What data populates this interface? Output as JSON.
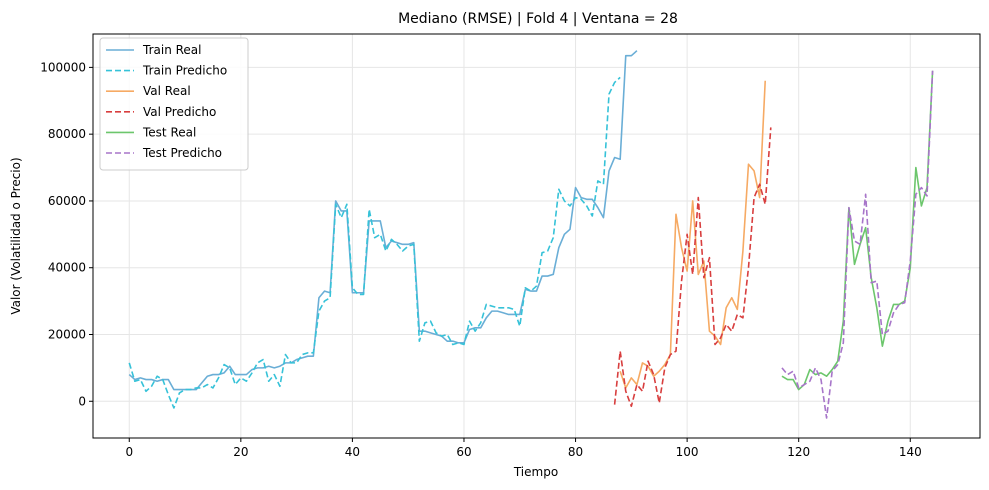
{
  "chart_data": {
    "type": "line",
    "title": "Mediano (RMSE) | Fold 4 | Ventana = 28",
    "xlabel": "Tiempo",
    "ylabel": "Valor (Volatilidad o Precio)",
    "xlim": [
      -6.5,
      152.5
    ],
    "ylim": [
      -11000,
      110000
    ],
    "xticks": [
      0,
      20,
      40,
      60,
      80,
      100,
      120,
      140
    ],
    "yticks": [
      0,
      20000,
      40000,
      60000,
      80000,
      100000
    ],
    "grid": true,
    "legend": "top-left",
    "series": [
      {
        "name": "Train Real",
        "color": "#6aaed6",
        "dash": false,
        "x0": 0,
        "values": [
          8000,
          6500,
          7000,
          6500,
          6500,
          6000,
          6500,
          6500,
          3500,
          3500,
          3500,
          3500,
          3500,
          5500,
          7500,
          8000,
          8000,
          8500,
          10500,
          8000,
          8000,
          8000,
          9500,
          10000,
          10000,
          10500,
          10000,
          10500,
          11500,
          11500,
          12500,
          13000,
          13500,
          13500,
          31000,
          33000,
          32500,
          60000,
          57000,
          57000,
          32500,
          32500,
          32500,
          54000,
          54000,
          54000,
          46000,
          48000,
          47500,
          47000,
          47000,
          47500,
          21000,
          21000,
          20500,
          20000,
          19500,
          18000,
          18000,
          17500,
          17500,
          21500,
          22000,
          22000,
          25000,
          27000,
          27000,
          26500,
          26000,
          26000,
          26000,
          33500,
          33000,
          33000,
          37500,
          37500,
          38000,
          46000,
          50000,
          51500,
          64000,
          61000,
          60500,
          60500,
          58000,
          55000,
          69000,
          73000,
          72500,
          103500,
          103500,
          105000
        ]
      },
      {
        "name": "Train Predicho",
        "color": "#36c2d8",
        "dash": true,
        "x0": 0,
        "values": [
          11500,
          6000,
          6500,
          3000,
          4500,
          7500,
          6500,
          2000,
          -2000,
          2500,
          3500,
          3500,
          4000,
          4000,
          5000,
          4000,
          7000,
          11000,
          10000,
          5000,
          7000,
          6000,
          8500,
          11500,
          12500,
          6000,
          8000,
          4500,
          14000,
          11500,
          11500,
          14000,
          14500,
          14500,
          27000,
          30000,
          31000,
          59000,
          55000,
          59000,
          34000,
          32000,
          32000,
          57500,
          49000,
          50000,
          45000,
          48500,
          47000,
          45000,
          46500,
          47000,
          18000,
          23500,
          24000,
          20500,
          19500,
          20000,
          17000,
          17500,
          17000,
          24000,
          21000,
          23500,
          29000,
          28500,
          28000,
          28000,
          28000,
          27500,
          22500,
          34000,
          33000,
          34500,
          44500,
          45000,
          49000,
          63500,
          60000,
          58500,
          61000,
          60500,
          58500,
          55500,
          66000,
          65000,
          92000,
          95500,
          97000
        ]
      },
      {
        "name": "Val Real",
        "color": "#f6aa64",
        "dash": false,
        "x0": 88,
        "values": [
          9000,
          4000,
          7000,
          5000,
          11500,
          10500,
          7500,
          9000,
          11000,
          14000,
          56000,
          46000,
          39000,
          60000,
          38000,
          42000,
          21000,
          19500,
          17000,
          28000,
          31000,
          27500,
          45000,
          71000,
          69000,
          61000,
          96000
        ]
      },
      {
        "name": "Val Predicho",
        "color": "#d83e3e",
        "dash": true,
        "x0": 87,
        "values": [
          -1000,
          15000,
          3000,
          -1500,
          5000,
          3000,
          12000,
          8000,
          -500,
          10000,
          14000,
          15000,
          36000,
          50000,
          38000,
          61000,
          37000,
          43000,
          17000,
          19000,
          23000,
          21000,
          26000,
          25000,
          40000,
          61000,
          65000,
          59000,
          82000
        ]
      },
      {
        "name": "Test Real",
        "color": "#6cc66c",
        "dash": false,
        "x0": 117,
        "values": [
          7500,
          6500,
          6500,
          3500,
          5000,
          9500,
          8000,
          8500,
          7500,
          9500,
          12000,
          24000,
          58000,
          41000,
          47000,
          52000,
          37000,
          28000,
          16500,
          24000,
          29000,
          29000,
          30000,
          40000,
          70000,
          58500,
          64000,
          99000
        ]
      },
      {
        "name": "Test Predicho",
        "color": "#a775c9",
        "dash": true,
        "x0": 117,
        "values": [
          10000,
          8000,
          9000,
          4000,
          5000,
          6000,
          10000,
          6500,
          -5000,
          9000,
          11000,
          17500,
          58000,
          48000,
          47000,
          62000,
          35500,
          36000,
          20000,
          21000,
          26500,
          29000,
          29500,
          42000,
          62000,
          64000,
          61500,
          99000
        ]
      }
    ]
  }
}
